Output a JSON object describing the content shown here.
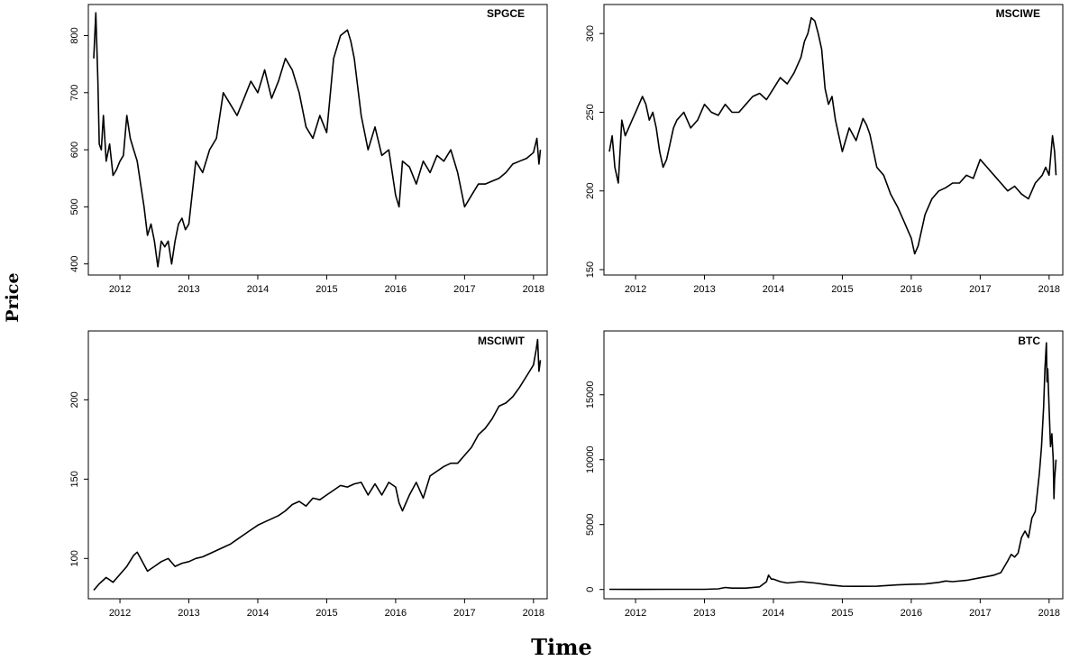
{
  "figure": {
    "ylabel": "Price",
    "xlabel": "Time"
  },
  "chart_data": [
    {
      "type": "line",
      "title": "SPGCE",
      "xlim": [
        2011.62,
        2018.12
      ],
      "ylim": [
        390,
        845
      ],
      "xticks": [
        2012,
        2013,
        2014,
        2015,
        2016,
        2017,
        2018
      ],
      "yticks": [
        400,
        500,
        600,
        700,
        800
      ],
      "series": [
        {
          "x": [
            2011.62,
            2011.65,
            2011.68,
            2011.7,
            2011.73,
            2011.76,
            2011.8,
            2011.85,
            2011.9,
            2011.95,
            2012.0,
            2012.05,
            2012.1,
            2012.15,
            2012.2,
            2012.25,
            2012.3,
            2012.35,
            2012.4,
            2012.45,
            2012.5,
            2012.55,
            2012.6,
            2012.65,
            2012.7,
            2012.75,
            2012.8,
            2012.85,
            2012.9,
            2012.95,
            2013.0,
            2013.1,
            2013.2,
            2013.3,
            2013.4,
            2013.5,
            2013.6,
            2013.7,
            2013.8,
            2013.9,
            2014.0,
            2014.1,
            2014.2,
            2014.3,
            2014.4,
            2014.5,
            2014.6,
            2014.7,
            2014.8,
            2014.9,
            2015.0,
            2015.1,
            2015.2,
            2015.3,
            2015.35,
            2015.4,
            2015.5,
            2015.6,
            2015.7,
            2015.8,
            2015.9,
            2016.0,
            2016.05,
            2016.1,
            2016.2,
            2016.3,
            2016.4,
            2016.5,
            2016.6,
            2016.7,
            2016.8,
            2016.9,
            2017.0,
            2017.1,
            2017.2,
            2017.3,
            2017.4,
            2017.5,
            2017.6,
            2017.7,
            2017.8,
            2017.9,
            2018.0,
            2018.05,
            2018.08,
            2018.1
          ],
          "y": [
            760,
            840,
            720,
            610,
            600,
            660,
            580,
            610,
            555,
            565,
            580,
            590,
            660,
            620,
            600,
            580,
            540,
            500,
            450,
            470,
            440,
            395,
            440,
            430,
            440,
            400,
            440,
            470,
            480,
            460,
            470,
            580,
            560,
            600,
            620,
            700,
            680,
            660,
            690,
            720,
            700,
            740,
            690,
            720,
            760,
            740,
            700,
            640,
            620,
            660,
            630,
            760,
            800,
            810,
            790,
            760,
            660,
            600,
            640,
            590,
            600,
            520,
            500,
            580,
            570,
            540,
            580,
            560,
            590,
            580,
            600,
            560,
            500,
            520,
            540,
            540,
            545,
            550,
            560,
            575,
            580,
            585,
            595,
            620,
            575,
            600
          ]
        }
      ]
    },
    {
      "type": "line",
      "title": "MSCIWE",
      "xlim": [
        2011.62,
        2018.12
      ],
      "ylim": [
        150,
        315
      ],
      "xticks": [
        2012,
        2013,
        2014,
        2015,
        2016,
        2017,
        2018
      ],
      "yticks": [
        150,
        200,
        250,
        300
      ],
      "series": [
        {
          "x": [
            2011.62,
            2011.66,
            2011.7,
            2011.75,
            2011.8,
            2011.85,
            2011.9,
            2011.95,
            2012.0,
            2012.05,
            2012.1,
            2012.15,
            2012.2,
            2012.25,
            2012.3,
            2012.35,
            2012.4,
            2012.45,
            2012.5,
            2012.55,
            2012.6,
            2012.7,
            2012.8,
            2012.9,
            2013.0,
            2013.1,
            2013.2,
            2013.3,
            2013.4,
            2013.5,
            2013.6,
            2013.7,
            2013.8,
            2013.9,
            2014.0,
            2014.1,
            2014.2,
            2014.3,
            2014.4,
            2014.45,
            2014.5,
            2014.55,
            2014.6,
            2014.65,
            2014.7,
            2014.75,
            2014.8,
            2014.85,
            2014.9,
            2014.95,
            2015.0,
            2015.1,
            2015.2,
            2015.3,
            2015.35,
            2015.4,
            2015.5,
            2015.6,
            2015.7,
            2015.8,
            2015.9,
            2015.95,
            2016.0,
            2016.05,
            2016.1,
            2016.2,
            2016.3,
            2016.4,
            2016.5,
            2016.6,
            2016.7,
            2016.8,
            2016.9,
            2017.0,
            2017.1,
            2017.2,
            2017.3,
            2017.4,
            2017.5,
            2017.6,
            2017.7,
            2017.8,
            2017.9,
            2017.95,
            2018.0,
            2018.05,
            2018.08,
            2018.1
          ],
          "y": [
            225,
            235,
            215,
            205,
            245,
            235,
            240,
            245,
            250,
            255,
            260,
            255,
            245,
            250,
            240,
            225,
            215,
            220,
            230,
            240,
            245,
            250,
            240,
            245,
            255,
            250,
            248,
            255,
            250,
            250,
            255,
            260,
            262,
            258,
            265,
            272,
            268,
            275,
            285,
            295,
            300,
            310,
            308,
            300,
            290,
            265,
            255,
            260,
            245,
            235,
            225,
            240,
            232,
            246,
            242,
            236,
            215,
            210,
            198,
            190,
            180,
            175,
            170,
            160,
            165,
            185,
            195,
            200,
            202,
            205,
            205,
            210,
            208,
            220,
            215,
            210,
            205,
            200,
            203,
            198,
            195,
            205,
            210,
            215,
            210,
            235,
            225,
            210
          ]
        }
      ]
    },
    {
      "type": "line",
      "title": "MSCIWIT",
      "xlim": [
        2011.62,
        2018.12
      ],
      "ylim": [
        78,
        240
      ],
      "xticks": [
        2012,
        2013,
        2014,
        2015,
        2016,
        2017,
        2018
      ],
      "yticks": [
        100,
        150,
        200
      ],
      "series": [
        {
          "x": [
            2011.62,
            2011.7,
            2011.8,
            2011.9,
            2012.0,
            2012.1,
            2012.2,
            2012.25,
            2012.3,
            2012.4,
            2012.5,
            2012.6,
            2012.7,
            2012.8,
            2012.9,
            2013.0,
            2013.1,
            2013.2,
            2013.3,
            2013.4,
            2013.5,
            2013.6,
            2013.7,
            2013.8,
            2013.9,
            2014.0,
            2014.1,
            2014.2,
            2014.3,
            2014.4,
            2014.5,
            2014.6,
            2014.7,
            2014.8,
            2014.9,
            2015.0,
            2015.1,
            2015.2,
            2015.3,
            2015.4,
            2015.5,
            2015.6,
            2015.7,
            2015.8,
            2015.9,
            2016.0,
            2016.05,
            2016.1,
            2016.2,
            2016.3,
            2016.4,
            2016.5,
            2016.6,
            2016.7,
            2016.8,
            2016.9,
            2017.0,
            2017.1,
            2017.2,
            2017.3,
            2017.4,
            2017.5,
            2017.6,
            2017.7,
            2017.8,
            2017.9,
            2018.0,
            2018.04,
            2018.06,
            2018.08,
            2018.1
          ],
          "y": [
            80,
            84,
            88,
            85,
            90,
            95,
            102,
            104,
            100,
            92,
            95,
            98,
            100,
            95,
            97,
            98,
            100,
            101,
            103,
            105,
            107,
            109,
            112,
            115,
            118,
            121,
            123,
            125,
            127,
            130,
            134,
            136,
            133,
            138,
            137,
            140,
            143,
            146,
            145,
            147,
            148,
            140,
            147,
            140,
            148,
            145,
            135,
            130,
            140,
            148,
            138,
            152,
            155,
            158,
            160,
            160,
            165,
            170,
            178,
            182,
            188,
            196,
            198,
            202,
            208,
            215,
            222,
            232,
            238,
            218,
            225
          ]
        }
      ]
    },
    {
      "type": "line",
      "title": "BTC",
      "xlim": [
        2011.62,
        2018.12
      ],
      "ylim": [
        -300,
        19500
      ],
      "xticks": [
        2012,
        2013,
        2014,
        2015,
        2016,
        2017,
        2018
      ],
      "yticks": [
        0,
        5000,
        10000,
        15000
      ],
      "series": [
        {
          "x": [
            2011.62,
            2012.0,
            2012.5,
            2013.0,
            2013.2,
            2013.3,
            2013.4,
            2013.6,
            2013.8,
            2013.9,
            2013.93,
            2013.97,
            2014.0,
            2014.1,
            2014.2,
            2014.4,
            2014.6,
            2014.8,
            2015.0,
            2015.2,
            2015.5,
            2015.8,
            2016.0,
            2016.2,
            2016.4,
            2016.5,
            2016.6,
            2016.8,
            2017.0,
            2017.1,
            2017.2,
            2017.3,
            2017.4,
            2017.45,
            2017.5,
            2017.55,
            2017.6,
            2017.65,
            2017.7,
            2017.75,
            2017.8,
            2017.83,
            2017.86,
            2017.89,
            2017.92,
            2017.94,
            2017.96,
            2017.97,
            2017.98,
            2018.0,
            2018.02,
            2018.04,
            2018.06,
            2018.07,
            2018.08,
            2018.1
          ],
          "y": [
            10,
            5,
            10,
            15,
            50,
            150,
            100,
            100,
            200,
            600,
            1100,
            800,
            800,
            600,
            500,
            600,
            500,
            350,
            250,
            240,
            250,
            350,
            400,
            420,
            550,
            650,
            600,
            700,
            900,
            1000,
            1100,
            1300,
            2200,
            2700,
            2500,
            2800,
            4000,
            4500,
            4000,
            5500,
            6000,
            7500,
            9000,
            11000,
            14000,
            17000,
            19000,
            16000,
            17000,
            14000,
            11000,
            12000,
            10000,
            7000,
            8500,
            10000
          ]
        }
      ]
    }
  ]
}
